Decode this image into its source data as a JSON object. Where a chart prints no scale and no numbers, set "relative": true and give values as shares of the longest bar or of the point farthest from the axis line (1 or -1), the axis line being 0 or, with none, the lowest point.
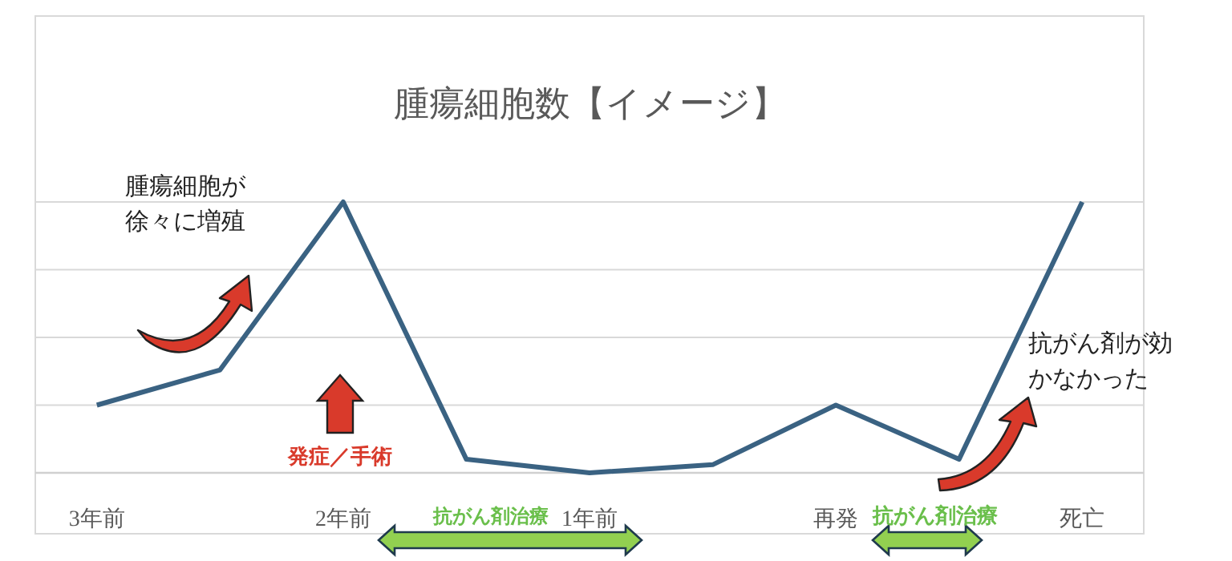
{
  "chart_data": {
    "type": "line",
    "title": "腫瘍細胞数【イメージ】",
    "categories": [
      "3年前",
      null,
      "2年前",
      null,
      "1年前",
      null,
      "再発",
      null,
      "死亡"
    ],
    "series": [
      {
        "color": "#3a6282",
        "values": [
          0.25,
          0.38,
          1,
          0.05,
          0,
          0.03,
          0.25,
          0.05,
          1
        ]
      }
    ],
    "relative": true,
    "grid": "y",
    "marker": "none",
    "line_style": "solid",
    "annotations": [
      "腫瘍細胞が徐々に増殖",
      "発症／手術",
      "抗がん剤治療",
      "抗がん剤治療",
      "抗がん剤が効かなかった"
    ]
  }
}
